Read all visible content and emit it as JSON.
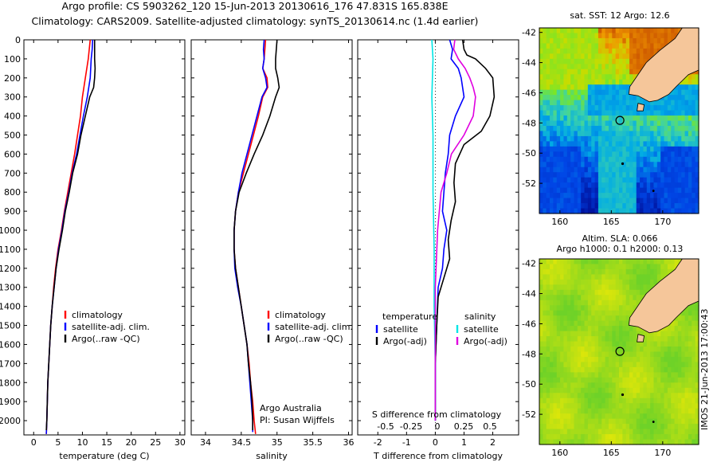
{
  "title_line1": "Argo profile: CS 5903262_120 15-Jun-2013 20130616_176 47.831S 165.838E",
  "title_line2": "Climatology: CARS2009. Satellite-adjusted climatology: synTS_20130614.nc (1.4d earlier)",
  "side_stamp": "IMOS 21-Jun-2013 17:00:43",
  "colors": {
    "climatology": "#ff0000",
    "satellite": "#0000ff",
    "argo": "#000000",
    "sal_satellite": "#00e5e5",
    "sal_argo": "#e000e0"
  },
  "chart_data": [
    {
      "type": "line",
      "xlabel": "temperature (deg C)",
      "xticks": [
        "0",
        "5",
        "10",
        "15",
        "20",
        "25",
        "30"
      ],
      "xlim": [
        -2,
        31
      ],
      "ylim": [
        0,
        2075
      ],
      "yticks": [
        "0",
        "100",
        "200",
        "300",
        "400",
        "500",
        "600",
        "700",
        "800",
        "900",
        "1000",
        "1100",
        "1200",
        "1300",
        "1400",
        "1500",
        "1600",
        "1700",
        "1800",
        "1900",
        "2000"
      ],
      "legend": [
        "climatology",
        "satellite-adj. clim.",
        "Argo(..raw -QC)"
      ],
      "series": [
        {
          "name": "climatology",
          "color": "#ff0000",
          "points": [
            [
              11.6,
              0
            ],
            [
              11.4,
              50
            ],
            [
              11.2,
              100
            ],
            [
              10.9,
              150
            ],
            [
              10.6,
              200
            ],
            [
              10.3,
              250
            ],
            [
              10.0,
              300
            ],
            [
              9.6,
              400
            ],
            [
              9.0,
              500
            ],
            [
              8.4,
              600
            ],
            [
              7.7,
              700
            ],
            [
              7.0,
              800
            ],
            [
              6.3,
              900
            ],
            [
              5.7,
              1000
            ],
            [
              5.0,
              1100
            ],
            [
              4.5,
              1200
            ],
            [
              4.1,
              1300
            ],
            [
              3.8,
              1400
            ],
            [
              3.5,
              1500
            ],
            [
              3.3,
              1600
            ],
            [
              3.1,
              1700
            ],
            [
              2.9,
              1800
            ],
            [
              2.8,
              1900
            ],
            [
              2.7,
              2000
            ],
            [
              2.6,
              2070
            ]
          ]
        },
        {
          "name": "satellite-adj. clim.",
          "color": "#0000ff",
          "points": [
            [
              12.1,
              0
            ],
            [
              12.0,
              50
            ],
            [
              11.8,
              100
            ],
            [
              11.7,
              150
            ],
            [
              11.6,
              200
            ],
            [
              11.3,
              250
            ],
            [
              11.0,
              300
            ],
            [
              10.2,
              400
            ],
            [
              9.5,
              500
            ],
            [
              8.8,
              600
            ],
            [
              7.9,
              700
            ],
            [
              7.2,
              800
            ],
            [
              6.4,
              900
            ],
            [
              5.8,
              1000
            ],
            [
              5.1,
              1100
            ],
            [
              4.6,
              1200
            ],
            [
              4.2,
              1300
            ],
            [
              3.8,
              1400
            ],
            [
              3.5,
              1500
            ],
            [
              3.3,
              1600
            ],
            [
              3.1,
              1700
            ],
            [
              2.9,
              1800
            ],
            [
              2.8,
              1900
            ],
            [
              2.7,
              2000
            ],
            [
              2.6,
              2070
            ]
          ]
        },
        {
          "name": "Argo(..raw -QC)",
          "color": "#000000",
          "points": [
            [
              12.5,
              0
            ],
            [
              12.5,
              50
            ],
            [
              12.5,
              100
            ],
            [
              12.6,
              150
            ],
            [
              12.5,
              200
            ],
            [
              12.3,
              250
            ],
            [
              11.5,
              300
            ],
            [
              10.6,
              400
            ],
            [
              9.7,
              500
            ],
            [
              9.0,
              600
            ],
            [
              8.0,
              700
            ],
            [
              7.3,
              800
            ],
            [
              6.5,
              900
            ],
            [
              5.9,
              1000
            ],
            [
              5.2,
              1100
            ],
            [
              4.6,
              1200
            ],
            [
              4.2,
              1300
            ],
            [
              3.8,
              1400
            ],
            [
              3.5,
              1500
            ],
            [
              3.3,
              1600
            ],
            [
              3.1,
              1700
            ],
            [
              2.9,
              1800
            ],
            [
              2.8,
              1900
            ],
            [
              2.7,
              2000
            ],
            [
              2.6,
              2050
            ]
          ]
        }
      ]
    },
    {
      "type": "line",
      "xlabel": "salinity",
      "xticks": [
        "34",
        "34.5",
        "35",
        "35.5",
        "36"
      ],
      "xlim": [
        33.8,
        36.05
      ],
      "ylim": [
        0,
        2075
      ],
      "legend": [
        "climatology",
        "satellite-adj. clim.",
        "Argo(..raw -QC)"
      ],
      "annotation": [
        "Argo Australia",
        "PI: Susan Wijffels"
      ],
      "series": [
        {
          "name": "climatology",
          "color": "#ff0000",
          "points": [
            [
              34.84,
              0
            ],
            [
              34.83,
              50
            ],
            [
              34.82,
              100
            ],
            [
              34.8,
              150
            ],
            [
              34.86,
              200
            ],
            [
              34.87,
              250
            ],
            [
              34.8,
              300
            ],
            [
              34.74,
              400
            ],
            [
              34.67,
              500
            ],
            [
              34.6,
              600
            ],
            [
              34.53,
              700
            ],
            [
              34.46,
              800
            ],
            [
              34.42,
              900
            ],
            [
              34.4,
              1000
            ],
            [
              34.4,
              1100
            ],
            [
              34.42,
              1200
            ],
            [
              34.46,
              1300
            ],
            [
              34.5,
              1400
            ],
            [
              34.54,
              1500
            ],
            [
              34.58,
              1600
            ],
            [
              34.61,
              1700
            ],
            [
              34.63,
              1800
            ],
            [
              34.66,
              1900
            ],
            [
              34.68,
              2000
            ],
            [
              34.7,
              2070
            ]
          ]
        },
        {
          "name": "satellite-adj. clim.",
          "color": "#0000ff",
          "points": [
            [
              34.82,
              0
            ],
            [
              34.81,
              50
            ],
            [
              34.82,
              100
            ],
            [
              34.8,
              150
            ],
            [
              34.84,
              200
            ],
            [
              34.86,
              250
            ],
            [
              34.79,
              300
            ],
            [
              34.72,
              400
            ],
            [
              34.65,
              500
            ],
            [
              34.58,
              600
            ],
            [
              34.51,
              700
            ],
            [
              34.46,
              800
            ],
            [
              34.42,
              900
            ],
            [
              34.4,
              1000
            ],
            [
              34.4,
              1100
            ],
            [
              34.41,
              1200
            ],
            [
              34.45,
              1300
            ],
            [
              34.5,
              1400
            ],
            [
              34.54,
              1500
            ],
            [
              34.58,
              1600
            ],
            [
              34.6,
              1700
            ],
            [
              34.62,
              1800
            ],
            [
              34.64,
              1900
            ],
            [
              34.66,
              2000
            ],
            [
              34.66,
              2060
            ]
          ]
        },
        {
          "name": "Argo(..raw -QC)",
          "color": "#000000",
          "points": [
            [
              35.0,
              0
            ],
            [
              34.99,
              50
            ],
            [
              34.98,
              100
            ],
            [
              34.98,
              150
            ],
            [
              35.01,
              200
            ],
            [
              35.03,
              250
            ],
            [
              34.98,
              300
            ],
            [
              34.9,
              400
            ],
            [
              34.8,
              500
            ],
            [
              34.68,
              600
            ],
            [
              34.57,
              700
            ],
            [
              34.47,
              800
            ],
            [
              34.42,
              900
            ],
            [
              34.4,
              1000
            ],
            [
              34.4,
              1100
            ],
            [
              34.42,
              1200
            ],
            [
              34.46,
              1300
            ],
            [
              34.5,
              1400
            ],
            [
              34.54,
              1500
            ],
            [
              34.58,
              1600
            ],
            [
              34.6,
              1700
            ],
            [
              34.63,
              1800
            ],
            [
              34.65,
              1900
            ],
            [
              34.66,
              2000
            ],
            [
              34.66,
              2050
            ]
          ]
        }
      ]
    },
    {
      "type": "line",
      "xlabel": "T difference from climatology",
      "xticks": [
        "-2",
        "-1",
        "0",
        "1",
        "2"
      ],
      "xlim": [
        -2.7,
        2.9
      ],
      "s_axis_label": "S difference from climatology",
      "s_ticks": [
        "-0.5",
        "-0.25",
        "0",
        "0.25",
        "0.5"
      ],
      "ylim": [
        0,
        2075
      ],
      "legend_left": {
        "title": "temperature",
        "items": [
          "satellite",
          "Argo(-adj)"
        ]
      },
      "legend_right": {
        "title": "salinity",
        "items": [
          "satellite",
          "Argo(-adj)"
        ]
      },
      "series": [
        {
          "name": "temperature satellite",
          "color": "#0000ff",
          "points": [
            [
              0.5,
              0
            ],
            [
              0.6,
              50
            ],
            [
              0.55,
              100
            ],
            [
              0.8,
              150
            ],
            [
              0.9,
              200
            ],
            [
              0.95,
              250
            ],
            [
              1.0,
              300
            ],
            [
              0.7,
              400
            ],
            [
              0.5,
              500
            ],
            [
              0.45,
              600
            ],
            [
              0.35,
              700
            ],
            [
              0.3,
              800
            ],
            [
              0.25,
              900
            ],
            [
              0.4,
              1000
            ],
            [
              0.3,
              1100
            ],
            [
              0.25,
              1200
            ],
            [
              0.1,
              1300
            ],
            [
              0.05,
              1500
            ],
            [
              0.0,
              1700
            ],
            [
              0.0,
              2000
            ]
          ]
        },
        {
          "name": "temperature Argo(-adj)",
          "color": "#000000",
          "points": [
            [
              0.95,
              0
            ],
            [
              1.0,
              50
            ],
            [
              1.1,
              80
            ],
            [
              1.4,
              100
            ],
            [
              1.75,
              150
            ],
            [
              2.0,
              200
            ],
            [
              2.05,
              300
            ],
            [
              1.9,
              400
            ],
            [
              1.6,
              480
            ],
            [
              1.0,
              550
            ],
            [
              0.7,
              650
            ],
            [
              0.65,
              750
            ],
            [
              0.7,
              850
            ],
            [
              0.55,
              950
            ],
            [
              0.45,
              1050
            ],
            [
              0.5,
              1150
            ],
            [
              0.3,
              1250
            ],
            [
              0.1,
              1350
            ],
            [
              0.05,
              1500
            ],
            [
              0.0,
              1700
            ],
            [
              0.0,
              2000
            ]
          ]
        },
        {
          "name": "salinity satellite",
          "color": "#00e5e5",
          "points": [
            [
              -0.03,
              0
            ],
            [
              -0.02,
              100
            ],
            [
              -0.03,
              300
            ],
            [
              -0.02,
              500
            ],
            [
              -0.02,
              800
            ],
            [
              -0.01,
              1100
            ],
            [
              -0.01,
              1400
            ],
            [
              0.0,
              1700
            ],
            [
              0.0,
              2000
            ]
          ]
        },
        {
          "name": "salinity Argo(-adj)",
          "color": "#e000e0",
          "points": [
            [
              0.17,
              0
            ],
            [
              0.16,
              50
            ],
            [
              0.2,
              100
            ],
            [
              0.26,
              150
            ],
            [
              0.3,
              200
            ],
            [
              0.33,
              250
            ],
            [
              0.35,
              300
            ],
            [
              0.33,
              400
            ],
            [
              0.25,
              500
            ],
            [
              0.14,
              600
            ],
            [
              0.1,
              700
            ],
            [
              0.05,
              800
            ],
            [
              0.02,
              1000
            ],
            [
              0.0,
              1300
            ],
            [
              0.0,
              2000
            ]
          ]
        }
      ]
    },
    {
      "type": "heatmap",
      "title": "sat. SST: 12 Argo: 12.6",
      "xticks": [
        "160",
        "165",
        "170"
      ],
      "yticks": [
        "-42",
        "-44",
        "-46",
        "-48",
        "-50",
        "-52"
      ],
      "xlim": [
        158,
        173.5
      ],
      "ylim": [
        -54,
        -41.7
      ],
      "argo_marker": [
        165.838,
        -47.831
      ]
    },
    {
      "type": "heatmap",
      "title_lines": [
        "Altim. SLA: 0.066",
        "Argo h1000: 0.1 h2000: 0.13"
      ],
      "xticks": [
        "160",
        "165",
        "170"
      ],
      "yticks": [
        "-42",
        "-44",
        "-46",
        "-48",
        "-50",
        "-52"
      ],
      "xlim": [
        158,
        173.5
      ],
      "ylim": [
        -54,
        -41.7
      ],
      "argo_marker": [
        165.838,
        -47.831
      ]
    }
  ]
}
